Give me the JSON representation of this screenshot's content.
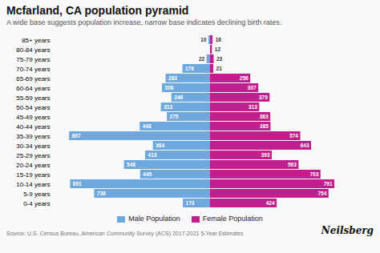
{
  "chart_data": {
    "type": "bar",
    "orientation": "horizontal",
    "title": "Mcfarland, CA population pyramid",
    "subtitle": "A wide base suggests population increase, narrow base indicates declining birth rates.",
    "annotations": [
      "Source: U.S. Census Bureau, American Community Survey (ACS) 2017-2021 5-Year Estimates",
      "Neilsberg"
    ],
    "categories": [
      "0-4 years",
      "5-9 years",
      "10-14 years",
      "15-19 years",
      "20-24 years",
      "25-29 years",
      "30-34 years",
      "35-39 years",
      "40-44 years",
      "45-49 years",
      "50-54 years",
      "55-59 years",
      "60-64 years",
      "65-69 years",
      "70-74 years",
      "75-79 years",
      "80-84 years",
      "85+ years"
    ],
    "series": [
      {
        "name": "Male Population",
        "color": "#6fa8dc",
        "values": [
          173,
          738,
          891,
          445,
          548,
          413,
          364,
          897,
          448,
          275,
          313,
          246,
          306,
          283,
          176,
          22,
          0,
          10
        ]
      },
      {
        "name": "Female Population",
        "color": "#c01f8e",
        "values": [
          424,
          754,
          791,
          703,
          563,
          393,
          643,
          574,
          385,
          383,
          313,
          379,
          307,
          256,
          21,
          23,
          12,
          16
        ]
      }
    ],
    "xlim": [
      0,
      1000
    ],
    "data_labels": true,
    "tick_labels": "y",
    "legend": "bottom",
    "grid": false
  }
}
